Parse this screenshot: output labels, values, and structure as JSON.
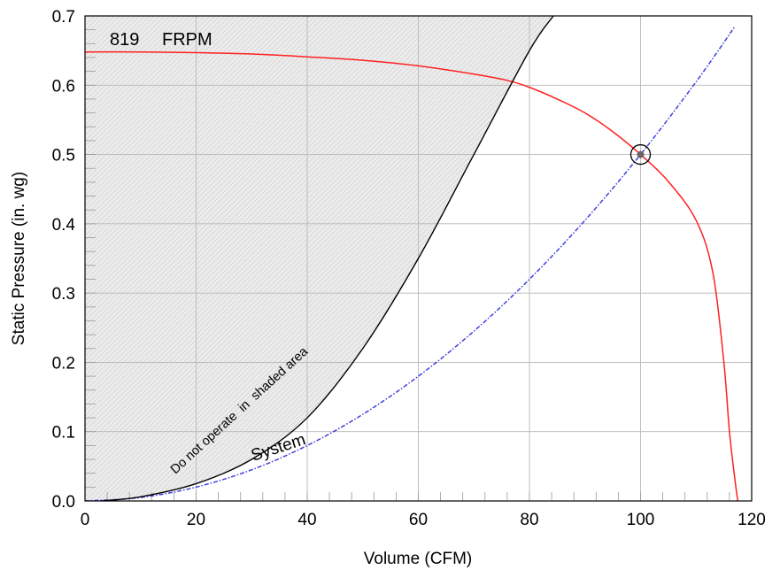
{
  "chart_data": {
    "type": "line",
    "xlabel": "Volume (CFM)",
    "ylabel": "Static Pressure (in. wg)",
    "xlim": [
      0,
      120
    ],
    "ylim": [
      0,
      0.7
    ],
    "x_ticks": [
      "0",
      "20",
      "40",
      "60",
      "80",
      "100",
      "120"
    ],
    "y_ticks": [
      "0.0",
      "0.1",
      "0.2",
      "0.3",
      "0.4",
      "0.5",
      "0.6",
      "0.7"
    ],
    "grid": true,
    "series": [
      {
        "key": "fan",
        "name": "819 FRPM",
        "color": "#ff2020",
        "style": "solid",
        "x": [
          0,
          10,
          20,
          30,
          40,
          50,
          60,
          70,
          76,
          80,
          85,
          90,
          95,
          100,
          105,
          110,
          113,
          115,
          116,
          117,
          117.5
        ],
        "y": [
          0.648,
          0.648,
          0.647,
          0.645,
          0.641,
          0.636,
          0.628,
          0.616,
          0.607,
          0.597,
          0.58,
          0.56,
          0.533,
          0.5,
          0.461,
          0.405,
          0.33,
          0.2,
          0.1,
          0.03,
          0.0
        ]
      },
      {
        "key": "system",
        "name": "System",
        "color": "#4040e0",
        "style": "dash-dot",
        "x": [
          0,
          10,
          20,
          30,
          40,
          50,
          60,
          70,
          80,
          90,
          100,
          110,
          117
        ],
        "y": [
          0.0,
          0.005,
          0.02,
          0.045,
          0.08,
          0.125,
          0.18,
          0.245,
          0.32,
          0.405,
          0.5,
          0.605,
          0.685
        ]
      },
      {
        "key": "stall",
        "name": "Do not operate in shaded area",
        "color": "#000000",
        "style": "solid",
        "x": [
          3,
          10,
          20,
          30,
          40,
          50,
          60,
          70,
          80,
          84.3
        ],
        "y": [
          0.0,
          0.006,
          0.025,
          0.06,
          0.12,
          0.22,
          0.35,
          0.5,
          0.65,
          0.7
        ]
      }
    ],
    "shaded_region": "above the stall line",
    "operating_point": {
      "x": 100,
      "y": 0.5
    },
    "annotations": {
      "rpm_value": "819",
      "rpm_unit": "FRPM",
      "system_label": "System",
      "stall_label": "Do not operate  in  shaded area"
    }
  },
  "colors": {
    "fan_curve": "#ff2020",
    "system_curve": "#4040e0",
    "stall_curve": "#000000",
    "grid": "#b8b8b8",
    "shade_fill": "#ececec",
    "hatch": "#c4c4c4"
  }
}
